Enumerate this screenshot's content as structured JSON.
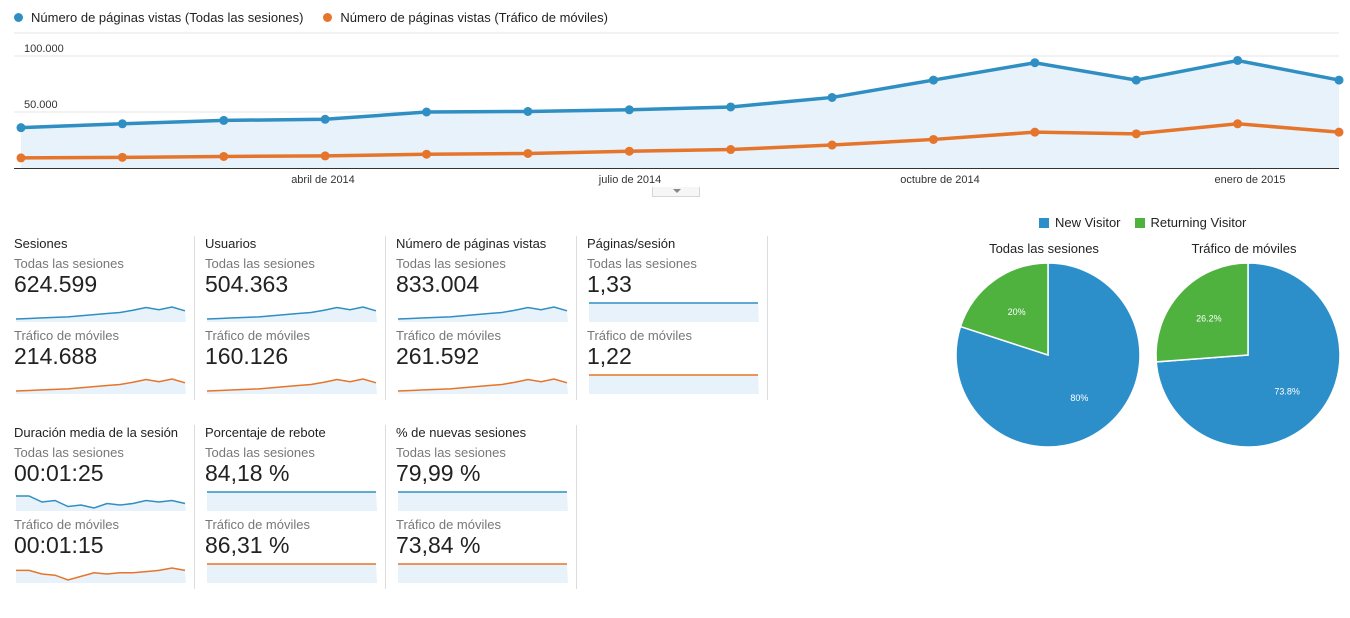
{
  "legend": {
    "series1": "Número de páginas vistas (Todas las sesiones)",
    "series2": "Número de páginas vistas (Tráfico de móviles)"
  },
  "colors": {
    "blue": "#2f8fc3",
    "orange": "#e5752b",
    "pie_blue": "#2c8fc9",
    "pie_green": "#4fb23f"
  },
  "chart_data": [
    {
      "type": "line",
      "y_tick_labels": [
        "100.000",
        "50.000"
      ],
      "y_ticks": [
        100000,
        50000
      ],
      "x_tick_labels": [
        "abril de 2014",
        "julio de 2014",
        "octubre de 2014",
        "enero de 2015"
      ],
      "ylim": [
        0,
        125000
      ],
      "grid": true,
      "legend_position": "top-left",
      "series": [
        {
          "name": "Número de páginas vistas (Todas las sesiones)",
          "color": "#2f8fc3",
          "values": [
            36000,
            39500,
            42500,
            43500,
            50000,
            50500,
            52000,
            54500,
            63000,
            78500,
            94000,
            78500,
            96000,
            78500
          ]
        },
        {
          "name": "Número de páginas vistas (Tráfico de móviles)",
          "color": "#e5752b",
          "values": [
            9000,
            9500,
            10300,
            10800,
            12300,
            13000,
            15000,
            16500,
            20500,
            25500,
            32000,
            30500,
            39500,
            32000
          ]
        }
      ]
    },
    {
      "type": "pie",
      "title": "Todas las sesiones",
      "categories": [
        "New Visitor",
        "Returning Visitor"
      ],
      "values": [
        80,
        20
      ],
      "labels": [
        "80%",
        "20%"
      ]
    },
    {
      "type": "pie",
      "title": "Tráfico de móviles",
      "categories": [
        "New Visitor",
        "Returning Visitor"
      ],
      "values": [
        73.8,
        26.2
      ],
      "labels": [
        "73.8%",
        "26.2%"
      ]
    }
  ],
  "pie_legend": {
    "new": "New Visitor",
    "returning": "Returning Visitor"
  },
  "metrics": [
    {
      "title": "Sesiones",
      "sub1": "Todas las sesiones",
      "val1": "624.599",
      "sub2": "Tráfico de móviles",
      "val2": "214.688",
      "spark1": [
        5,
        5.5,
        6,
        6.5,
        7,
        8,
        9,
        10,
        11,
        13,
        15.5,
        13.5,
        16,
        12.5
      ],
      "spark2": [
        5,
        5.5,
        6,
        6.5,
        7,
        8,
        9,
        10,
        11,
        13,
        15.5,
        13.5,
        16,
        12.5
      ],
      "sep": true
    },
    {
      "title": "Usuarios",
      "sub1": "Todas las sesiones",
      "val1": "504.363",
      "sub2": "Tráfico de móviles",
      "val2": "160.126",
      "spark1": [
        5,
        5.5,
        6,
        6.5,
        7,
        8,
        9,
        10,
        11,
        13,
        15.5,
        13.5,
        16,
        12.5
      ],
      "spark2": [
        5,
        5.5,
        6,
        6.5,
        7,
        8,
        9,
        10,
        11,
        13,
        15.5,
        13.5,
        16,
        12.5
      ],
      "sep": true
    },
    {
      "title": "Número de páginas vistas",
      "sub1": "Todas las sesiones",
      "val1": "833.004",
      "sub2": "Tráfico de móviles",
      "val2": "261.592",
      "spark1": [
        5,
        5.5,
        6,
        6.5,
        7,
        8,
        9,
        10,
        11,
        13,
        15.5,
        13.5,
        16,
        12.5
      ],
      "spark2": [
        5,
        5.5,
        6,
        6.5,
        7,
        8,
        9,
        10,
        11,
        13,
        15.5,
        13.5,
        16,
        12.5
      ],
      "sep": true
    },
    {
      "title": "Páginas/sesión",
      "sub1": "Todas las sesiones",
      "val1": "1,33",
      "sub2": "Tráfico de móviles",
      "val2": "1,22",
      "spark1": [
        10,
        10,
        9.9,
        9.8,
        9.8,
        9.8,
        9.8,
        9.8,
        9.8,
        9.8,
        9.8,
        9.8,
        9.8,
        9.8
      ],
      "spark2": [
        10,
        9.9,
        9.8,
        9.8,
        9.7,
        9.7,
        9.7,
        9.7,
        9.7,
        9.8,
        9.8,
        9.8,
        9.8,
        9.8
      ],
      "sep": true
    },
    {
      "title": "Duración media de la sesión",
      "sub1": "Todas las sesiones",
      "val1": "00:01:25",
      "sub2": "Tráfico de móviles",
      "val2": "00:01:15",
      "spark1": [
        10,
        10,
        9.6,
        9.7,
        9.3,
        9.4,
        9.2,
        9.5,
        9.4,
        9.5,
        9.7,
        9.6,
        9.7,
        9.5
      ],
      "spark2": [
        10,
        10,
        9.7,
        9.6,
        9.2,
        9.5,
        9.8,
        9.7,
        9.8,
        9.8,
        9.9,
        10,
        10.2,
        10
      ],
      "sep": true
    },
    {
      "title": "Porcentaje de rebote",
      "sub1": "Todas las sesiones",
      "val1": "84,18 %",
      "sub2": "Tráfico de móviles",
      "val2": "86,31 %",
      "spark1": [
        10,
        10,
        10,
        10,
        10,
        10,
        10,
        10,
        10,
        10,
        10,
        10,
        10,
        10
      ],
      "spark2": [
        10,
        10,
        10,
        10,
        10,
        10,
        10,
        10,
        10,
        10,
        10,
        10,
        10,
        10
      ],
      "sep": true
    },
    {
      "title": "% de nuevas sesiones",
      "sub1": "Todas las sesiones",
      "val1": "79,99 %",
      "sub2": "Tráfico de móviles",
      "val2": "73,84 %",
      "spark1": [
        10,
        10,
        10,
        10,
        10,
        10,
        10,
        10,
        10,
        10,
        10,
        10,
        10,
        10
      ],
      "spark2": [
        10,
        10,
        10,
        10,
        10,
        10,
        10,
        10,
        10,
        10,
        10,
        10,
        10,
        10
      ],
      "sep": true
    }
  ]
}
